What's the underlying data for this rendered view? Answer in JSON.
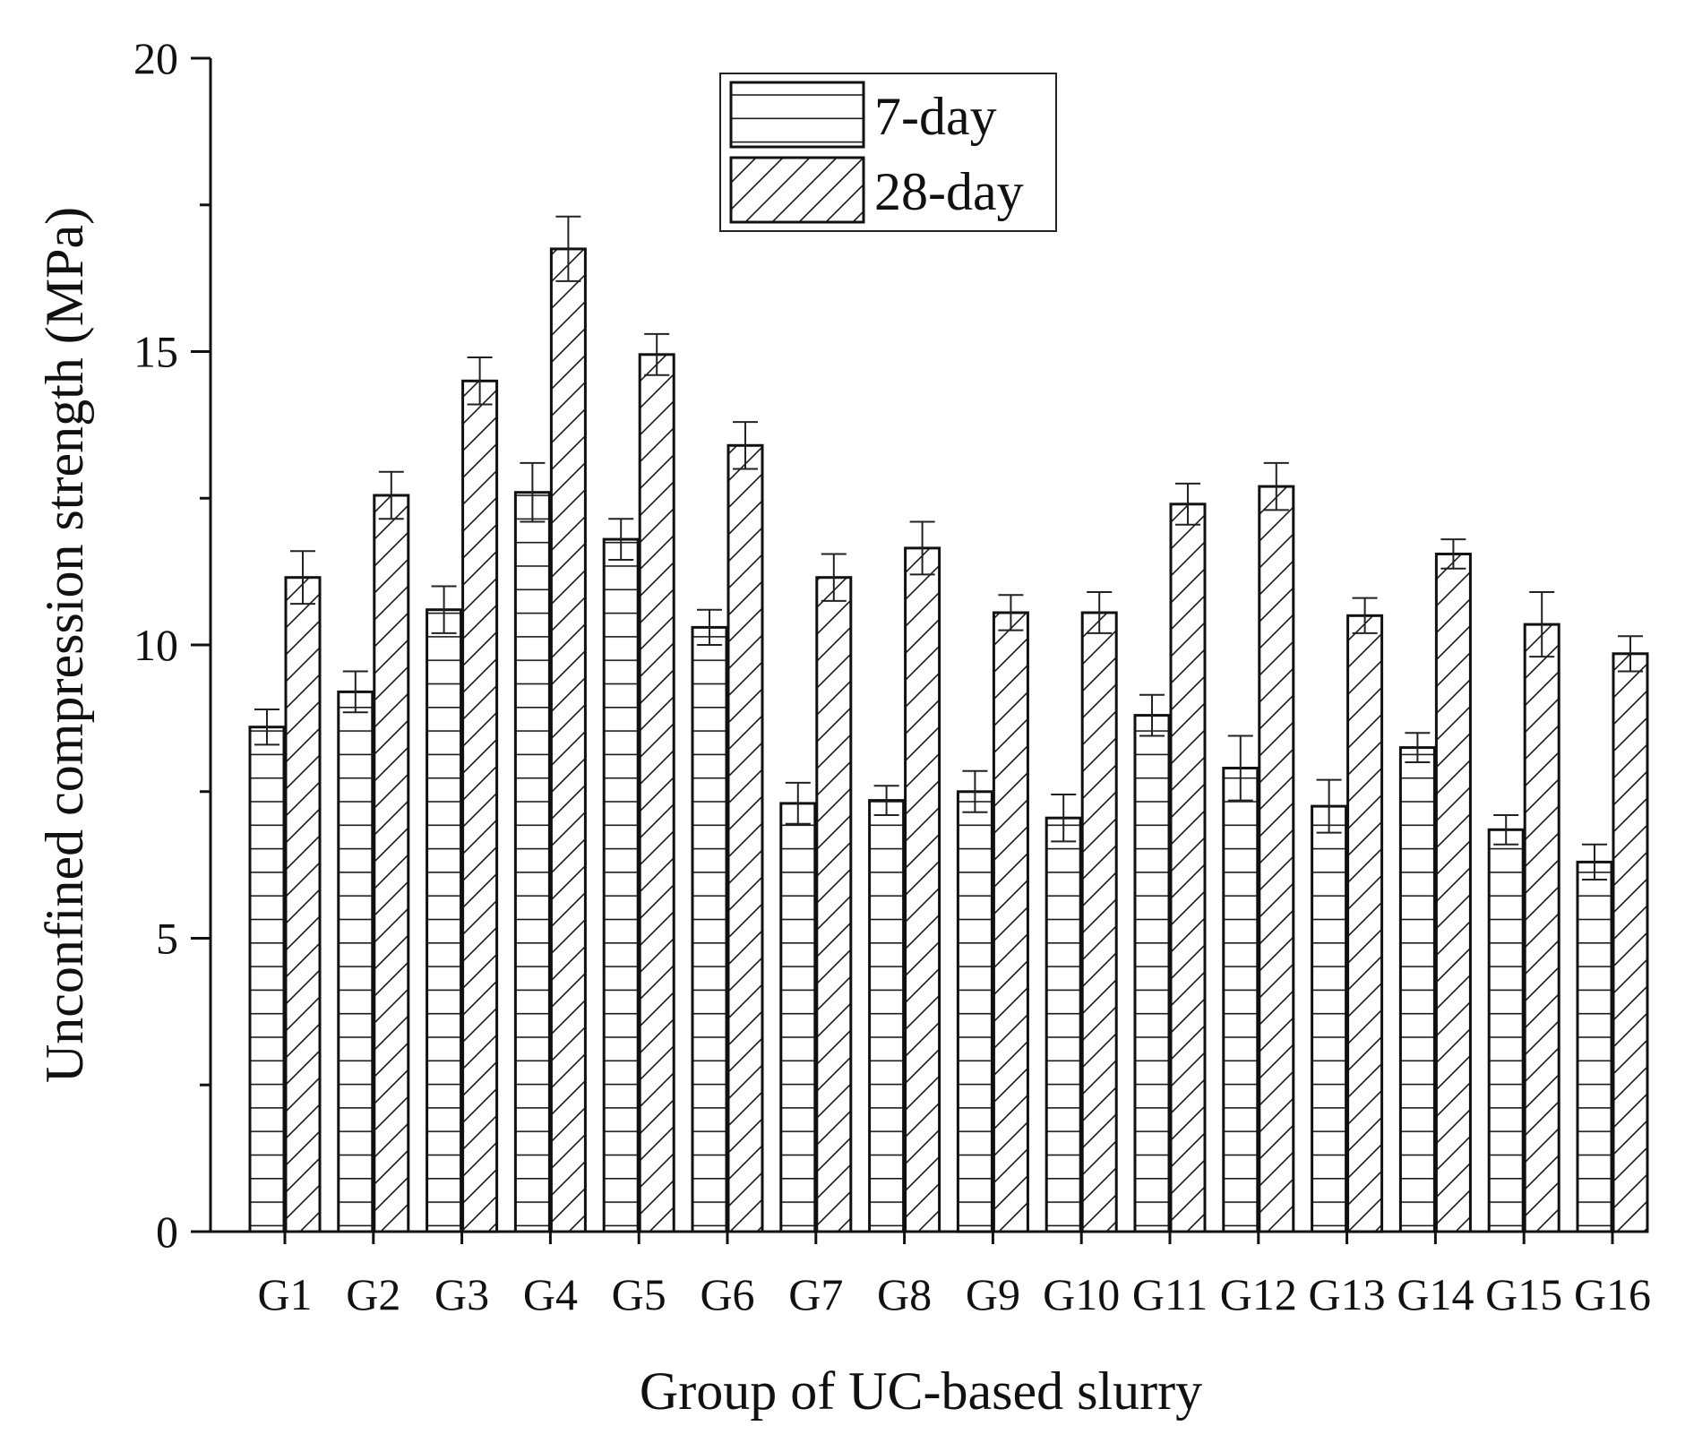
{
  "chart_data": {
    "type": "bar",
    "title": "",
    "xlabel": "Group of UC-based slurry",
    "ylabel": "Unconfined compression strength (MPa)",
    "ylim": [
      0,
      20
    ],
    "yticks": [
      0,
      5,
      10,
      15,
      20
    ],
    "ytick_labels": [
      "0",
      "5",
      "10",
      "15",
      "20"
    ],
    "minor_yticks": [
      2.5,
      7.5,
      12.5,
      17.5
    ],
    "grid": false,
    "legend_position": "top-center",
    "categories": [
      "G1",
      "G2",
      "G3",
      "G4",
      "G5",
      "G6",
      "G7",
      "G8",
      "G9",
      "G10",
      "G11",
      "G12",
      "G13",
      "G14",
      "G15",
      "G16"
    ],
    "series": [
      {
        "name": "7-day",
        "pattern": "horizontal-lines",
        "values": [
          8.6,
          9.2,
          10.6,
          12.6,
          11.8,
          10.3,
          7.3,
          7.35,
          7.5,
          7.05,
          8.8,
          7.9,
          7.25,
          8.25,
          6.85,
          6.3
        ],
        "errors": [
          0.3,
          0.35,
          0.4,
          0.5,
          0.35,
          0.3,
          0.35,
          0.25,
          0.35,
          0.4,
          0.35,
          0.55,
          0.45,
          0.25,
          0.25,
          0.3
        ]
      },
      {
        "name": "28-day",
        "pattern": "diagonal-lines",
        "values": [
          11.15,
          12.55,
          14.5,
          16.75,
          14.95,
          13.4,
          11.15,
          11.65,
          10.55,
          10.55,
          12.4,
          12.7,
          10.5,
          11.55,
          10.35,
          9.85
        ],
        "errors": [
          0.45,
          0.4,
          0.4,
          0.55,
          0.35,
          0.4,
          0.4,
          0.45,
          0.3,
          0.35,
          0.35,
          0.4,
          0.3,
          0.25,
          0.55,
          0.3
        ]
      }
    ]
  }
}
